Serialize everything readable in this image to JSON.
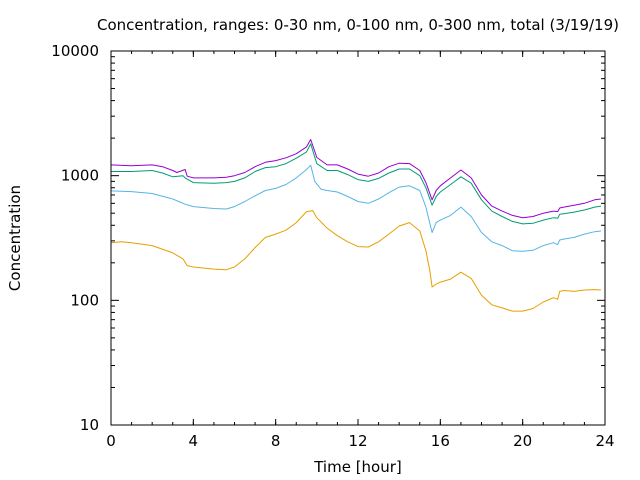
{
  "chart_data": {
    "type": "line",
    "title": "Concentration, ranges: 0-30 nm, 0-100 nm, 0-300 nm, total (3/19/19)",
    "xlabel": "Time [hour]",
    "ylabel": "Concentration",
    "xlim": [
      0,
      24
    ],
    "ylim": [
      10,
      10000
    ],
    "yscale": "log",
    "grid": false,
    "legend": "none",
    "x_ticks": [
      "0",
      "4",
      "8",
      "12",
      "16",
      "20",
      "24"
    ],
    "y_ticks": [
      "10",
      "100",
      "1000",
      "10000"
    ],
    "series": [
      {
        "color": "#e69f00",
        "points": [
          [
            0,
            290
          ],
          [
            0.5,
            295
          ],
          [
            1,
            290
          ],
          [
            2,
            275
          ],
          [
            3,
            240
          ],
          [
            3.5,
            215
          ],
          [
            3.7,
            190
          ],
          [
            4,
            185
          ],
          [
            5,
            178
          ],
          [
            5.6,
            176
          ],
          [
            6,
            185
          ],
          [
            6.5,
            215
          ],
          [
            7,
            265
          ],
          [
            7.5,
            320
          ],
          [
            8,
            340
          ],
          [
            8.5,
            365
          ],
          [
            9,
            420
          ],
          [
            9.5,
            515
          ],
          [
            9.8,
            525
          ],
          [
            10,
            460
          ],
          [
            10.5,
            380
          ],
          [
            11,
            330
          ],
          [
            11.5,
            295
          ],
          [
            12,
            270
          ],
          [
            12.5,
            268
          ],
          [
            13,
            295
          ],
          [
            13.5,
            340
          ],
          [
            14,
            395
          ],
          [
            14.5,
            420
          ],
          [
            15,
            360
          ],
          [
            15.3,
            250
          ],
          [
            15.5,
            170
          ],
          [
            15.6,
            128
          ],
          [
            15.8,
            135
          ],
          [
            16,
            140
          ],
          [
            16.5,
            148
          ],
          [
            17,
            168
          ],
          [
            17.5,
            150
          ],
          [
            18,
            110
          ],
          [
            18.5,
            92
          ],
          [
            19,
            87
          ],
          [
            19.5,
            82
          ],
          [
            20,
            82
          ],
          [
            20.5,
            86
          ],
          [
            21,
            97
          ],
          [
            21.5,
            105
          ],
          [
            21.7,
            102
          ],
          [
            21.8,
            118
          ],
          [
            22,
            120
          ],
          [
            22.5,
            118
          ],
          [
            23,
            121
          ],
          [
            23.5,
            122
          ],
          [
            23.8,
            121
          ]
        ]
      },
      {
        "color": "#56b4e9",
        "points": [
          [
            0,
            755
          ],
          [
            1,
            745
          ],
          [
            2,
            720
          ],
          [
            3,
            650
          ],
          [
            3.6,
            590
          ],
          [
            4,
            565
          ],
          [
            5,
            545
          ],
          [
            5.6,
            540
          ],
          [
            6,
            565
          ],
          [
            6.5,
            620
          ],
          [
            7,
            690
          ],
          [
            7.5,
            760
          ],
          [
            8,
            790
          ],
          [
            8.5,
            850
          ],
          [
            9,
            960
          ],
          [
            9.5,
            1120
          ],
          [
            9.7,
            1210
          ],
          [
            9.9,
            900
          ],
          [
            10.2,
            780
          ],
          [
            10.5,
            760
          ],
          [
            11,
            740
          ],
          [
            11.5,
            680
          ],
          [
            12,
            620
          ],
          [
            12.5,
            600
          ],
          [
            13,
            650
          ],
          [
            13.5,
            730
          ],
          [
            14,
            810
          ],
          [
            14.5,
            830
          ],
          [
            15,
            760
          ],
          [
            15.3,
            560
          ],
          [
            15.6,
            350
          ],
          [
            15.8,
            420
          ],
          [
            16,
            440
          ],
          [
            16.5,
            480
          ],
          [
            17,
            560
          ],
          [
            17.5,
            470
          ],
          [
            18,
            350
          ],
          [
            18.5,
            295
          ],
          [
            19,
            275
          ],
          [
            19.5,
            250
          ],
          [
            20,
            248
          ],
          [
            20.5,
            252
          ],
          [
            21,
            275
          ],
          [
            21.5,
            290
          ],
          [
            21.7,
            280
          ],
          [
            21.8,
            305
          ],
          [
            22,
            310
          ],
          [
            22.5,
            320
          ],
          [
            23,
            340
          ],
          [
            23.5,
            355
          ],
          [
            23.8,
            360
          ]
        ]
      },
      {
        "color": "#009e73",
        "points": [
          [
            0,
            1080
          ],
          [
            1,
            1080
          ],
          [
            2,
            1100
          ],
          [
            2.5,
            1050
          ],
          [
            3,
            980
          ],
          [
            3.5,
            1000
          ],
          [
            3.6,
            960
          ],
          [
            4,
            880
          ],
          [
            5,
            870
          ],
          [
            5.6,
            880
          ],
          [
            6,
            900
          ],
          [
            6.5,
            960
          ],
          [
            7,
            1080
          ],
          [
            7.5,
            1160
          ],
          [
            8,
            1180
          ],
          [
            8.5,
            1250
          ],
          [
            9,
            1380
          ],
          [
            9.5,
            1550
          ],
          [
            9.7,
            1800
          ],
          [
            10,
            1250
          ],
          [
            10.5,
            1100
          ],
          [
            11,
            1100
          ],
          [
            11.5,
            1020
          ],
          [
            12,
            930
          ],
          [
            12.5,
            900
          ],
          [
            13,
            950
          ],
          [
            13.5,
            1050
          ],
          [
            14,
            1130
          ],
          [
            14.5,
            1130
          ],
          [
            15,
            1000
          ],
          [
            15.3,
            800
          ],
          [
            15.6,
            580
          ],
          [
            15.8,
            680
          ],
          [
            16,
            740
          ],
          [
            16.5,
            850
          ],
          [
            17,
            980
          ],
          [
            17.5,
            870
          ],
          [
            18,
            640
          ],
          [
            18.5,
            520
          ],
          [
            19,
            470
          ],
          [
            19.5,
            430
          ],
          [
            20,
            410
          ],
          [
            20.5,
            415
          ],
          [
            21,
            440
          ],
          [
            21.5,
            460
          ],
          [
            21.7,
            455
          ],
          [
            21.8,
            490
          ],
          [
            22,
            495
          ],
          [
            22.5,
            510
          ],
          [
            23,
            530
          ],
          [
            23.5,
            560
          ],
          [
            23.8,
            570
          ]
        ]
      },
      {
        "color": "#9400d3",
        "points": [
          [
            0,
            1220
          ],
          [
            1,
            1200
          ],
          [
            2,
            1220
          ],
          [
            2.5,
            1180
          ],
          [
            3,
            1100
          ],
          [
            3.2,
            1060
          ],
          [
            3.6,
            1120
          ],
          [
            3.7,
            990
          ],
          [
            4,
            960
          ],
          [
            5,
            960
          ],
          [
            5.6,
            970
          ],
          [
            6,
            1000
          ],
          [
            6.5,
            1060
          ],
          [
            7,
            1180
          ],
          [
            7.5,
            1280
          ],
          [
            8,
            1320
          ],
          [
            8.5,
            1390
          ],
          [
            9,
            1500
          ],
          [
            9.5,
            1700
          ],
          [
            9.7,
            1950
          ],
          [
            10,
            1400
          ],
          [
            10.5,
            1220
          ],
          [
            11,
            1220
          ],
          [
            11.5,
            1130
          ],
          [
            12,
            1030
          ],
          [
            12.5,
            990
          ],
          [
            13,
            1050
          ],
          [
            13.5,
            1180
          ],
          [
            14,
            1260
          ],
          [
            14.5,
            1250
          ],
          [
            15,
            1100
          ],
          [
            15.3,
            880
          ],
          [
            15.6,
            640
          ],
          [
            15.8,
            760
          ],
          [
            16,
            830
          ],
          [
            16.5,
            960
          ],
          [
            17,
            1110
          ],
          [
            17.5,
            960
          ],
          [
            18,
            700
          ],
          [
            18.5,
            570
          ],
          [
            19,
            520
          ],
          [
            19.5,
            480
          ],
          [
            20,
            460
          ],
          [
            20.5,
            470
          ],
          [
            21,
            500
          ],
          [
            21.5,
            520
          ],
          [
            21.7,
            515
          ],
          [
            21.8,
            550
          ],
          [
            22,
            560
          ],
          [
            22.5,
            580
          ],
          [
            23,
            600
          ],
          [
            23.5,
            640
          ],
          [
            23.8,
            650
          ]
        ]
      }
    ]
  }
}
